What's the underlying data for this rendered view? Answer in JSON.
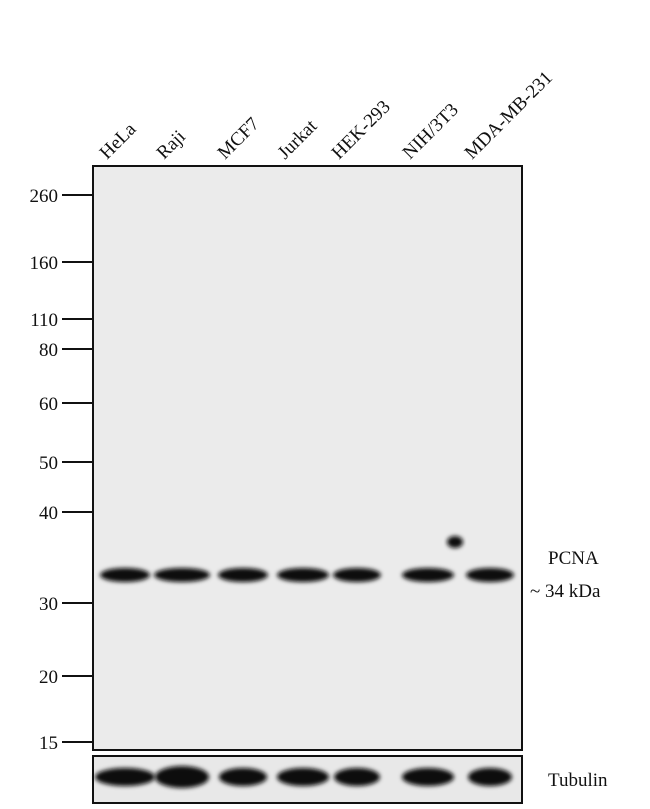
{
  "lanes": [
    "HeLa",
    "Raji",
    "MCF7",
    "Jurkat",
    "HEK-293",
    "NIH/3T3",
    "MDA-MB-231"
  ],
  "markers": [
    260,
    160,
    110,
    80,
    60,
    50,
    40,
    30,
    20,
    15
  ],
  "target": {
    "name": "PCNA",
    "size": "~  34 kDa"
  },
  "loading_control": "Tubulin"
}
